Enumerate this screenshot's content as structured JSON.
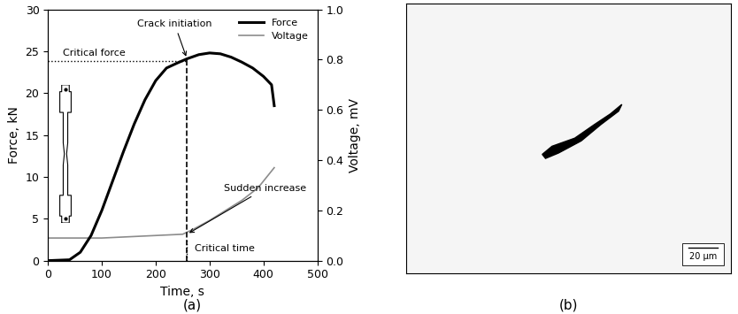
{
  "chart_data": {
    "type": "line",
    "caption": "(a)",
    "x_label": "Time, s",
    "y_label": "Force, kN",
    "y2_label": "Voltage, mV",
    "xlim": [
      0,
      500
    ],
    "xticks": [
      0,
      100,
      200,
      300,
      400,
      500
    ],
    "ylim": [
      0,
      30
    ],
    "yticks": [
      0,
      5,
      10,
      15,
      20,
      25,
      30
    ],
    "y2lim": [
      0,
      1.0
    ],
    "y2ticks": [
      {
        "value": 0,
        "label": "0.0"
      },
      0.2,
      0.4,
      0.6,
      0.8,
      {
        "value": 1.0,
        "label": "1.0"
      }
    ],
    "legend": "upper right",
    "grid": false,
    "series": [
      {
        "name": "Force",
        "color": "#000000",
        "line_style": "solid",
        "x": [
          0,
          40,
          60,
          80,
          100,
          120,
          140,
          160,
          180,
          200,
          220,
          240,
          258,
          280,
          300,
          320,
          340,
          360,
          380,
          400,
          415,
          420
        ],
        "values": [
          0,
          0.1,
          1,
          3,
          6,
          9.5,
          13,
          16.3,
          19.2,
          21.5,
          23,
          23.6,
          24.1,
          24.6,
          24.8,
          24.7,
          24.3,
          23.7,
          23,
          22,
          21,
          18.5
        ]
      },
      {
        "name": "Voltage",
        "color": "#8c8c8c",
        "line_style": "solid",
        "axis": "y2",
        "x": [
          0,
          50,
          100,
          150,
          200,
          250,
          270,
          300,
          330,
          360,
          390,
          420
        ],
        "values": [
          0.09,
          0.09,
          0.09,
          0.095,
          0.1,
          0.105,
          0.125,
          0.16,
          0.2,
          0.24,
          0.29,
          0.37
        ]
      }
    ],
    "annotations": [
      {
        "text": "Critical force",
        "y": 23.8,
        "x": 258
      },
      {
        "text": "Crack initiation",
        "x": 258,
        "y": 24.1
      },
      {
        "text": "Sudden increase",
        "x": 258,
        "y2": 0.105
      },
      {
        "text": "Critical time",
        "x": 258
      }
    ]
  },
  "micrograph": {
    "caption": "(b)",
    "scale_bar": "20 μm"
  }
}
